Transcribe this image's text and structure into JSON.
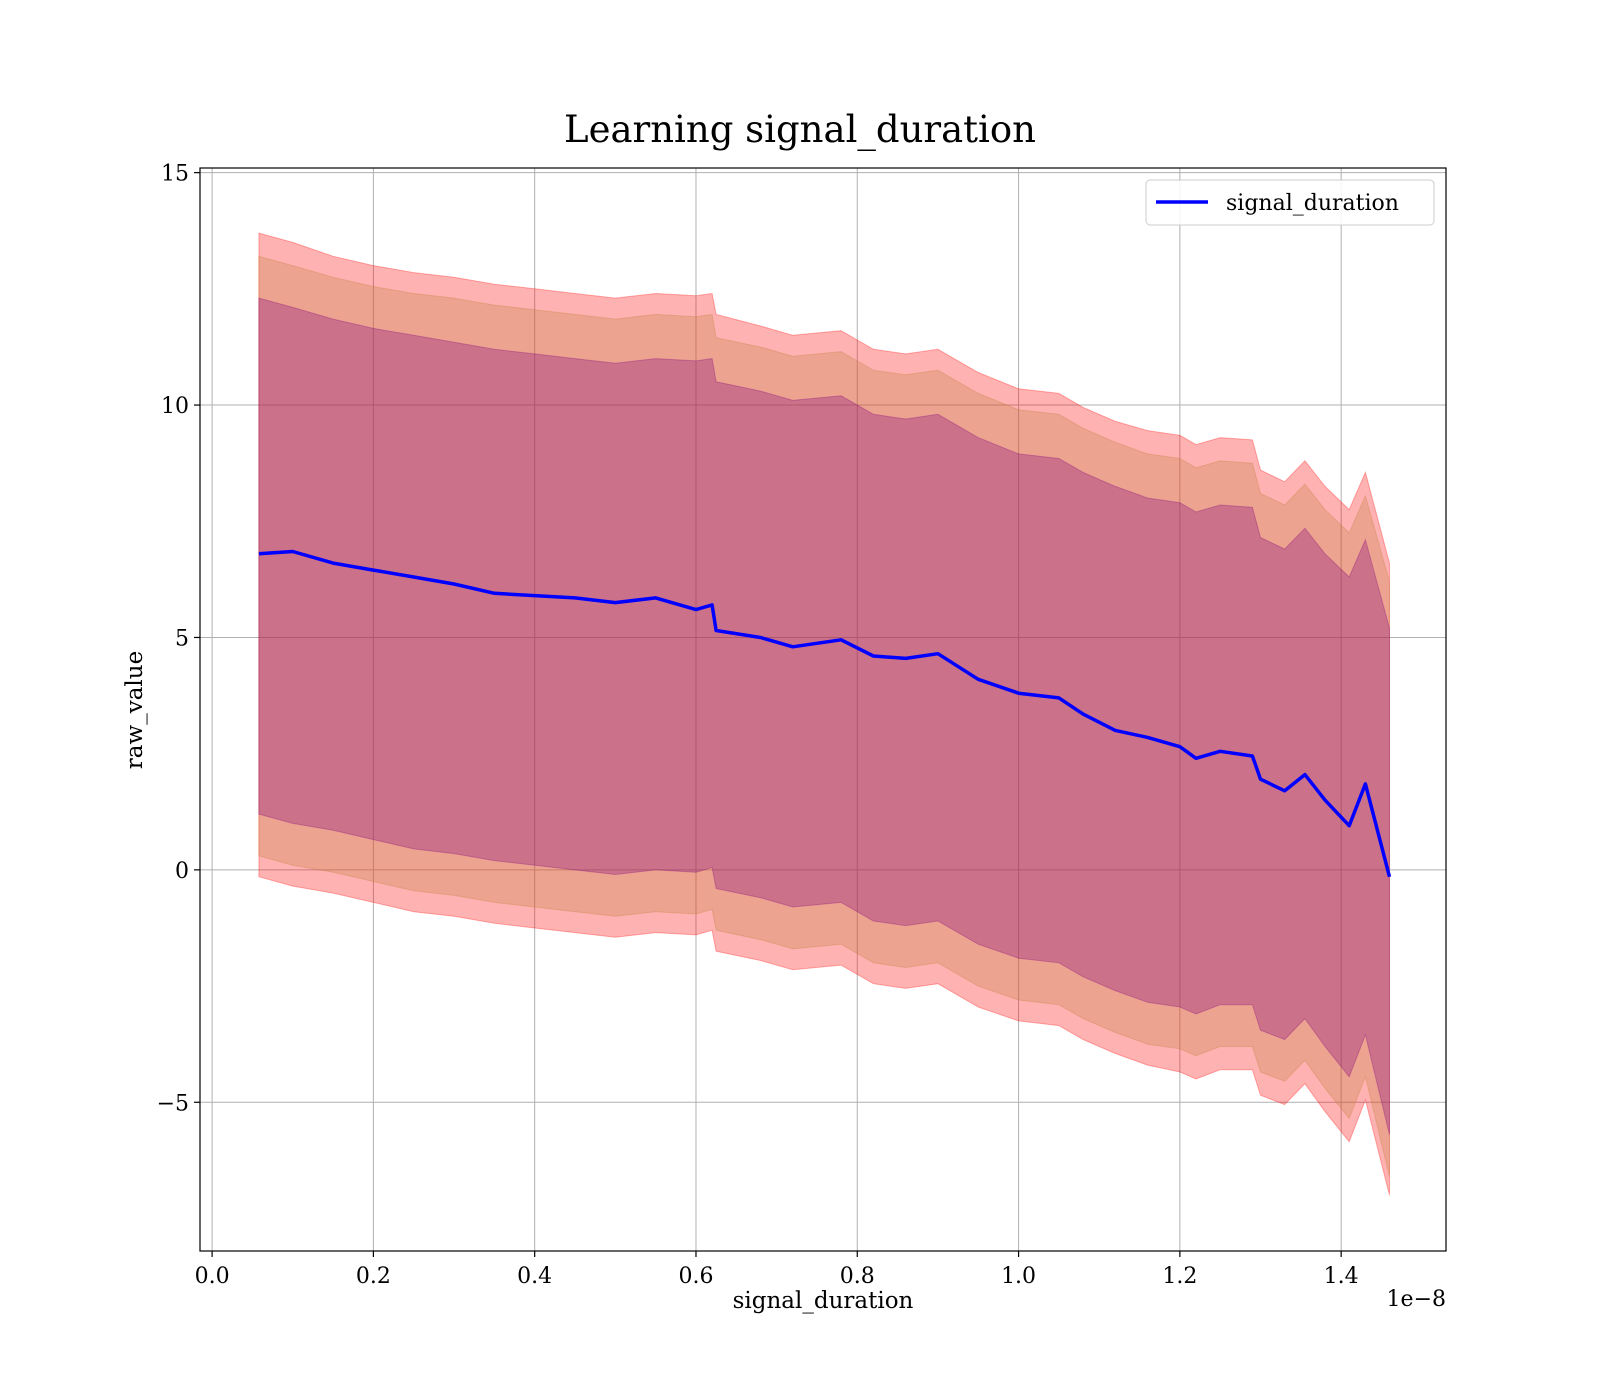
{
  "chart_data": {
    "type": "line",
    "title": "Learning signal_duration",
    "xlabel": "signal_duration",
    "ylabel": "raw_value",
    "x_offset_label": "1e−8",
    "xlim": [
      -0.015,
      1.53
    ],
    "ylim": [
      -8.2,
      15.1
    ],
    "x_ticks": [
      0.0,
      0.2,
      0.4,
      0.6,
      0.8,
      1.0,
      1.2,
      1.4
    ],
    "x_tick_labels": [
      "0.0",
      "0.2",
      "0.4",
      "0.6",
      "0.8",
      "1.0",
      "1.2",
      "1.4"
    ],
    "y_ticks": [
      -5,
      0,
      5,
      10,
      15
    ],
    "y_tick_labels": [
      "−5",
      "0",
      "5",
      "10",
      "15"
    ],
    "grid": true,
    "legend": {
      "position": "top-right",
      "entries": [
        "signal_duration"
      ]
    },
    "colors": {
      "line": "#0000ff",
      "band_outer": "#ff0000",
      "band_middle": "#bf8040",
      "band_inner": "#800080"
    },
    "x": [
      0.058,
      0.1,
      0.15,
      0.2,
      0.25,
      0.3,
      0.35,
      0.4,
      0.45,
      0.5,
      0.55,
      0.6,
      0.62,
      0.625,
      0.68,
      0.72,
      0.78,
      0.82,
      0.86,
      0.9,
      0.95,
      1.0,
      1.05,
      1.08,
      1.12,
      1.16,
      1.2,
      1.22,
      1.25,
      1.29,
      1.3,
      1.33,
      1.355,
      1.38,
      1.41,
      1.43,
      1.46
    ],
    "series": [
      {
        "name": "signal_duration",
        "values": [
          6.8,
          6.85,
          6.6,
          6.45,
          6.3,
          6.15,
          5.95,
          5.9,
          5.85,
          5.75,
          5.85,
          5.6,
          5.7,
          5.15,
          5.0,
          4.8,
          4.95,
          4.6,
          4.55,
          4.65,
          4.1,
          3.8,
          3.7,
          3.35,
          3.0,
          2.85,
          2.65,
          2.4,
          2.55,
          2.45,
          1.95,
          1.7,
          2.05,
          1.5,
          0.95,
          1.85,
          -0.15
        ]
      }
    ],
    "bands": [
      {
        "color_key": "band_outer",
        "upper": [
          13.7,
          13.5,
          13.2,
          13.0,
          12.85,
          12.75,
          12.6,
          12.5,
          12.4,
          12.3,
          12.4,
          12.35,
          12.4,
          11.95,
          11.7,
          11.5,
          11.6,
          11.2,
          11.1,
          11.2,
          10.7,
          10.35,
          10.25,
          9.95,
          9.65,
          9.45,
          9.35,
          9.15,
          9.3,
          9.25,
          8.6,
          8.35,
          8.8,
          8.25,
          7.75,
          8.55,
          6.6
        ],
        "lower": [
          -0.15,
          -0.35,
          -0.5,
          -0.7,
          -0.9,
          -1.0,
          -1.15,
          -1.25,
          -1.35,
          -1.45,
          -1.35,
          -1.4,
          -1.3,
          -1.75,
          -1.95,
          -2.15,
          -2.05,
          -2.45,
          -2.55,
          -2.45,
          -2.95,
          -3.25,
          -3.35,
          -3.65,
          -3.95,
          -4.2,
          -4.35,
          -4.5,
          -4.3,
          -4.3,
          -4.85,
          -5.05,
          -4.6,
          -5.2,
          -5.85,
          -4.95,
          -7.0
        ]
      },
      {
        "color_key": "band_middle",
        "upper": [
          13.2,
          13.0,
          12.75,
          12.55,
          12.4,
          12.3,
          12.15,
          12.05,
          11.95,
          11.85,
          11.95,
          11.9,
          11.95,
          11.45,
          11.25,
          11.05,
          11.15,
          10.75,
          10.65,
          10.75,
          10.25,
          9.9,
          9.8,
          9.5,
          9.2,
          8.95,
          8.85,
          8.65,
          8.8,
          8.75,
          8.1,
          7.85,
          8.3,
          7.75,
          7.25,
          8.05,
          6.2
        ],
        "lower": [
          0.3,
          0.1,
          -0.05,
          -0.25,
          -0.45,
          -0.55,
          -0.7,
          -0.8,
          -0.9,
          -1.0,
          -0.9,
          -0.95,
          -0.85,
          -1.3,
          -1.5,
          -1.7,
          -1.6,
          -2.0,
          -2.1,
          -2.0,
          -2.5,
          -2.8,
          -2.9,
          -3.2,
          -3.5,
          -3.75,
          -3.85,
          -4.0,
          -3.8,
          -3.8,
          -4.35,
          -4.55,
          -4.1,
          -4.7,
          -5.35,
          -4.45,
          -6.6
        ]
      },
      {
        "color_key": "band_inner",
        "upper": [
          12.3,
          12.1,
          11.85,
          11.65,
          11.5,
          11.35,
          11.2,
          11.1,
          11.0,
          10.9,
          11.0,
          10.95,
          11.0,
          10.5,
          10.3,
          10.1,
          10.2,
          9.8,
          9.7,
          9.8,
          9.3,
          8.95,
          8.85,
          8.55,
          8.25,
          8.0,
          7.9,
          7.7,
          7.85,
          7.8,
          7.15,
          6.9,
          7.35,
          6.8,
          6.3,
          7.1,
          5.2
        ],
        "lower": [
          1.2,
          1.0,
          0.85,
          0.65,
          0.45,
          0.35,
          0.2,
          0.1,
          0.0,
          -0.1,
          0.0,
          -0.05,
          0.05,
          -0.4,
          -0.6,
          -0.8,
          -0.7,
          -1.1,
          -1.2,
          -1.1,
          -1.6,
          -1.9,
          -2.0,
          -2.3,
          -2.6,
          -2.85,
          -2.95,
          -3.1,
          -2.9,
          -2.9,
          -3.45,
          -3.65,
          -3.2,
          -3.8,
          -4.45,
          -3.55,
          -5.7
        ]
      }
    ]
  }
}
